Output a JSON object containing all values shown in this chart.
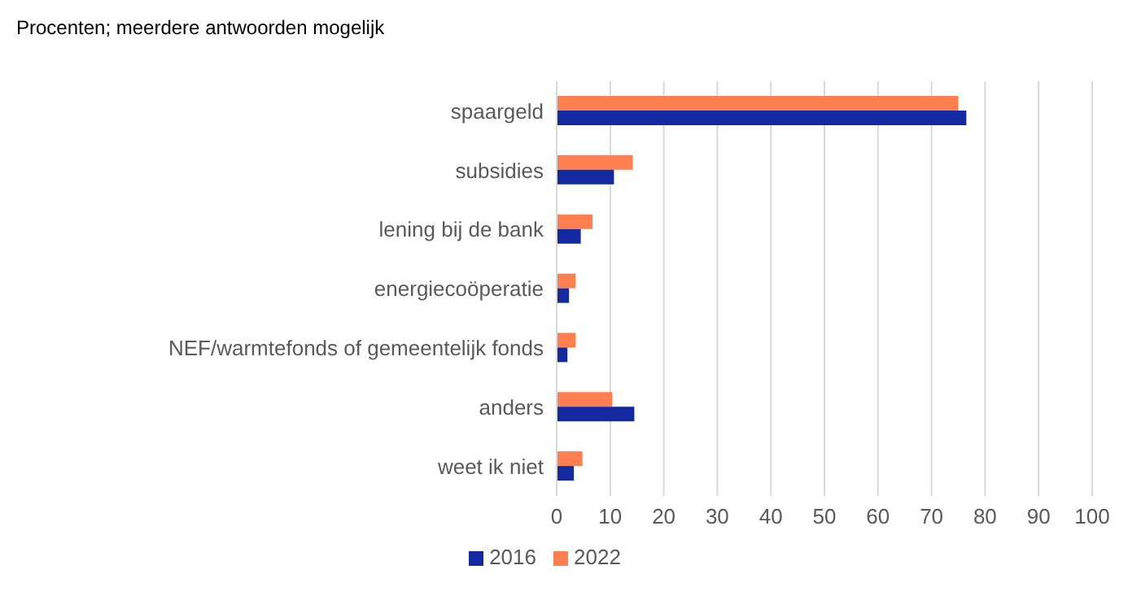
{
  "chart_data": {
    "type": "bar",
    "orientation": "horizontal",
    "title": "Procenten; meerdere antwoorden mogelijk",
    "categories": [
      "spaargeld",
      "subsidies",
      "lening bij de bank",
      "energiecoöperatie",
      "NEF/warmtefonds of gemeentelijk fonds",
      "anders",
      "weet ik niet"
    ],
    "series": [
      {
        "name": "2022",
        "color": "#ff7f50",
        "values": [
          75,
          14.2,
          6.7,
          3.5,
          3.5,
          10.4,
          4.8
        ]
      },
      {
        "name": "2016",
        "color": "#1428a0",
        "values": [
          76.5,
          10.7,
          4.5,
          2.3,
          2,
          14.5,
          3.2
        ]
      }
    ],
    "xlim": [
      0,
      100
    ],
    "xticks": [
      0,
      10,
      20,
      30,
      40,
      50,
      60,
      70,
      80,
      90,
      100
    ],
    "grid": "x",
    "legend": "bottom"
  }
}
